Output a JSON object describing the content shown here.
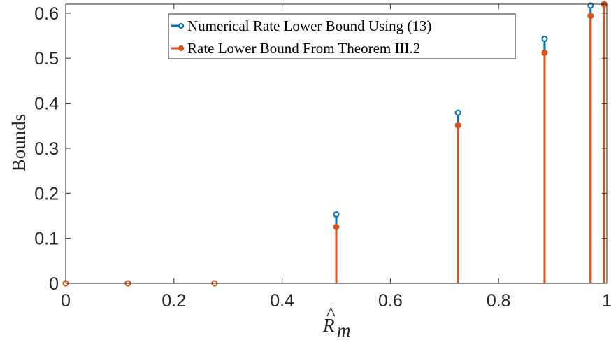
{
  "chart_data": {
    "type": "stem",
    "xlabel_main": "R",
    "xlabel_sub": "m",
    "xlabel_hat": "^",
    "ylabel": "Bounds",
    "xlim": [
      0,
      1
    ],
    "ylim": [
      0,
      0.62
    ],
    "xticks": [
      "0",
      "0.2",
      "0.4",
      "0.6",
      "0.8",
      "1"
    ],
    "yticks": [
      "0",
      "0.1",
      "0.2",
      "0.3",
      "0.4",
      "0.5",
      "0.6"
    ],
    "x": [
      0,
      0.115,
      0.275,
      0.5,
      0.725,
      0.885,
      0.97,
      0.995
    ],
    "series": [
      {
        "name": "Numerical Rate Lower Bound Using (13)",
        "color": "#0072BD",
        "marker": "open-circle",
        "values": [
          0,
          0,
          0,
          0.153,
          0.379,
          0.543,
          0.617,
          0.62
        ]
      },
      {
        "name": "Rate Lower Bound From Theorem III.2",
        "color": "#D95319",
        "marker": "filled-circle",
        "values": [
          0,
          0,
          0,
          0.125,
          0.351,
          0.512,
          0.594,
          0.62
        ]
      }
    ],
    "grid": false,
    "legend_position": "top"
  }
}
